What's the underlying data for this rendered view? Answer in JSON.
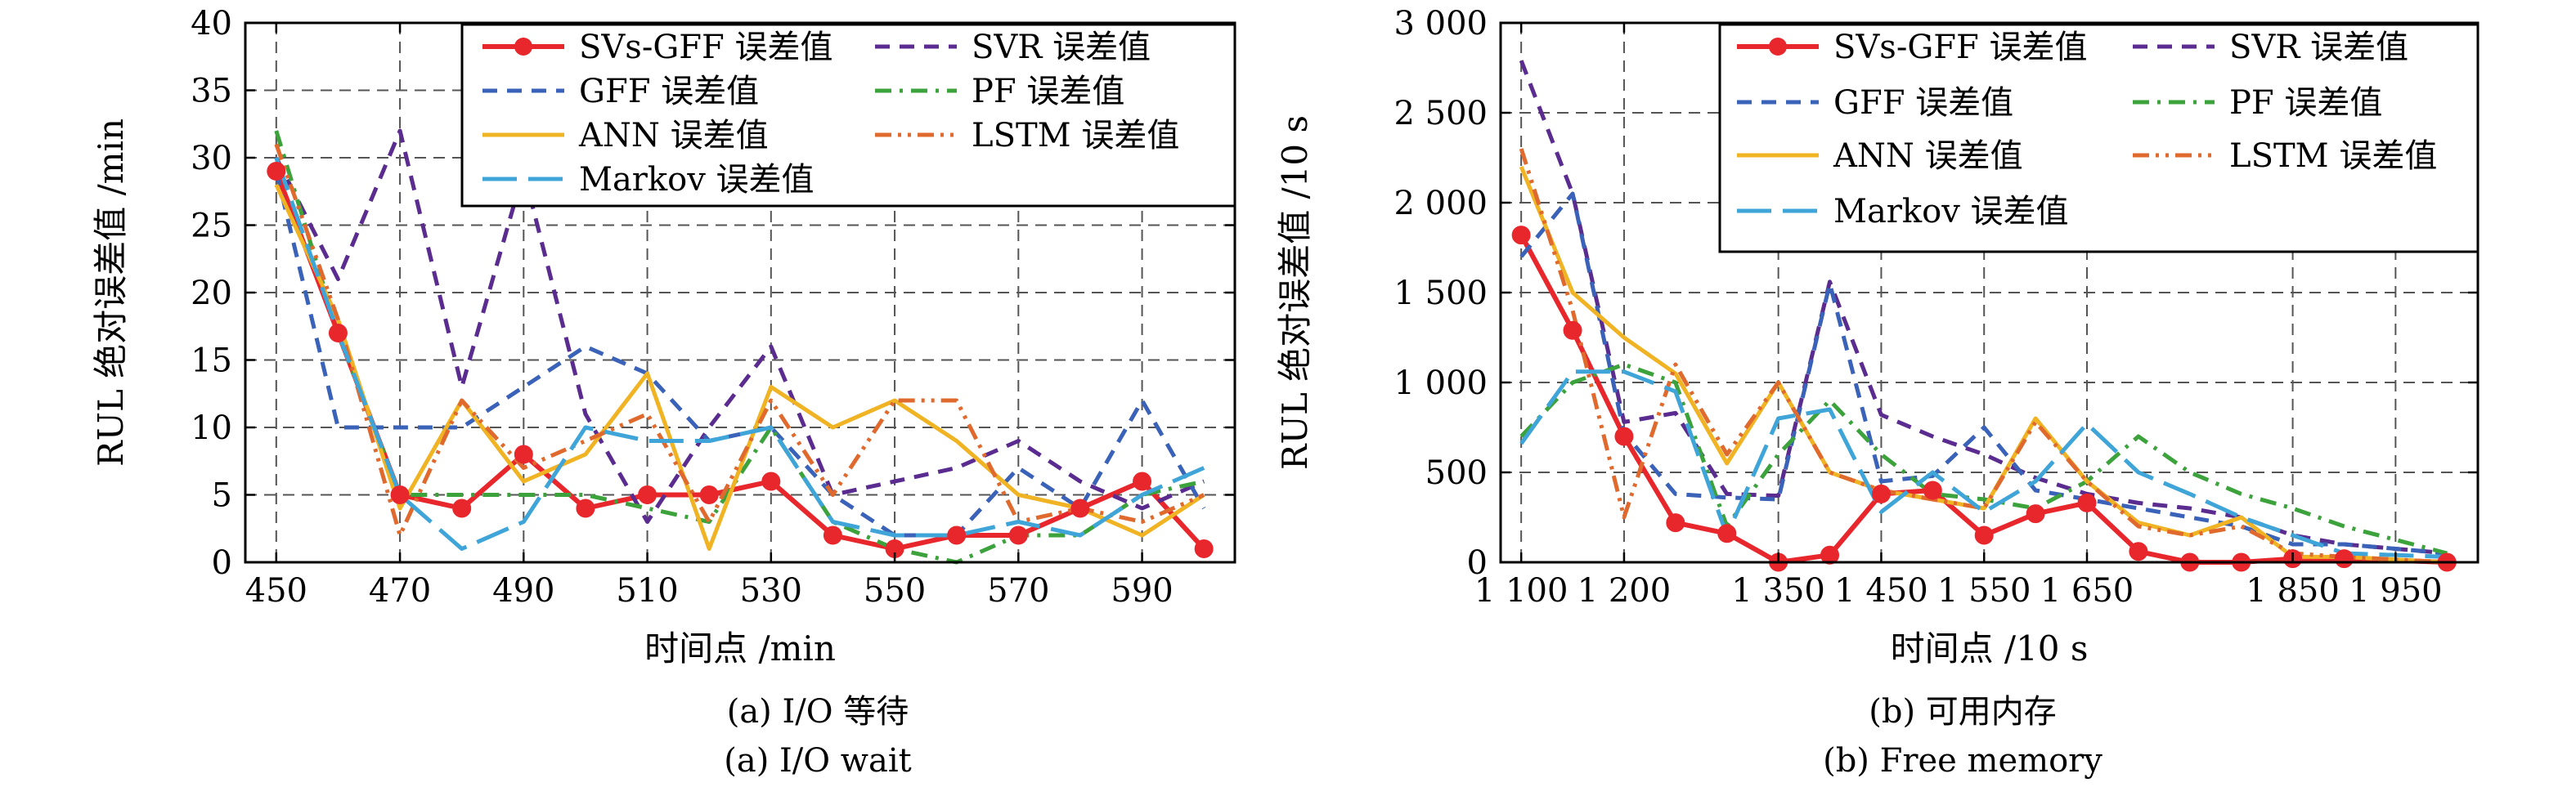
{
  "chart_data": [
    {
      "type": "line",
      "xlabel": "时间点 /min",
      "ylabel": "RUL 绝对误差值 /min",
      "caption_cn": "(a) I/O 等待",
      "caption_en": "(a) I/O wait",
      "xlim": [
        445,
        605
      ],
      "ylim": [
        0,
        40
      ],
      "xticks": [
        450,
        470,
        490,
        510,
        530,
        550,
        570,
        590
      ],
      "xtick_labels": [
        "450",
        "470",
        "490",
        "510",
        "530",
        "550",
        "570",
        "590"
      ],
      "yticks": [
        0,
        5,
        10,
        15,
        20,
        25,
        30,
        35,
        40
      ],
      "ytick_labels": [
        "0",
        "5",
        "10",
        "15",
        "20",
        "25",
        "30",
        "35",
        "40"
      ],
      "grid": true,
      "legend_position": "top-right",
      "series": [
        {
          "name": "SVs-GFF 误差值",
          "color": "#e8272d",
          "style": "marker",
          "x": [
            450,
            460,
            470,
            480,
            490,
            500,
            510,
            520,
            530,
            540,
            550,
            560,
            570,
            580,
            590,
            600
          ],
          "y": [
            29,
            17,
            5,
            4,
            8,
            4,
            5,
            5,
            6,
            2,
            1,
            2,
            2,
            4,
            6,
            1
          ]
        },
        {
          "name": "SVR 误差值",
          "color": "#5b2c8f",
          "style": "dash",
          "x": [
            450,
            460,
            470,
            480,
            490,
            500,
            510,
            520,
            530,
            540,
            550,
            560,
            570,
            580,
            590,
            600
          ],
          "y": [
            30,
            21,
            32,
            13,
            29,
            11,
            3,
            10,
            16,
            5,
            6,
            7,
            9,
            6,
            4,
            6
          ]
        },
        {
          "name": "GFF 误差值",
          "color": "#3a62b8",
          "style": "dash",
          "x": [
            450,
            460,
            470,
            480,
            490,
            500,
            510,
            520,
            530,
            540,
            550,
            560,
            570,
            580,
            590,
            600
          ],
          "y": [
            29,
            10,
            10,
            10,
            13,
            16,
            14,
            9,
            10,
            5,
            2,
            2,
            7,
            4,
            12,
            4
          ]
        },
        {
          "name": "PF 误差值",
          "color": "#3ca23c",
          "style": "dashdot",
          "x": [
            450,
            460,
            470,
            480,
            490,
            500,
            510,
            520,
            530,
            540,
            550,
            560,
            570,
            580,
            590,
            600
          ],
          "y": [
            32,
            17,
            5,
            5,
            5,
            5,
            4,
            3,
            10,
            3,
            1,
            0,
            2,
            2,
            5,
            6
          ]
        },
        {
          "name": "ANN 误差值",
          "color": "#f0b323",
          "style": "solid",
          "x": [
            450,
            460,
            470,
            480,
            490,
            500,
            510,
            520,
            530,
            540,
            550,
            560,
            570,
            580,
            590,
            600
          ],
          "y": [
            28,
            18,
            4,
            12,
            6,
            8,
            14,
            1,
            13,
            10,
            12,
            9,
            5,
            4,
            2,
            5
          ]
        },
        {
          "name": "LSTM 误差值",
          "color": "#e06a2e",
          "style": "dashdotdot",
          "x": [
            450,
            460,
            470,
            480,
            490,
            500,
            510,
            520,
            530,
            540,
            550,
            560,
            570,
            580,
            590,
            600
          ],
          "y": [
            31,
            18,
            2,
            12,
            7,
            9,
            11,
            3,
            12,
            5,
            12,
            12,
            3,
            4,
            3,
            5
          ]
        },
        {
          "name": "Markov 误差值",
          "color": "#3fa5d8",
          "style": "longdash",
          "x": [
            450,
            460,
            470,
            480,
            490,
            500,
            510,
            520,
            530,
            540,
            550,
            560,
            570,
            580,
            590,
            600
          ],
          "y": [
            30,
            17,
            5,
            1,
            3,
            10,
            9,
            9,
            10,
            3,
            2,
            2,
            3,
            2,
            5,
            7
          ]
        }
      ]
    },
    {
      "type": "line",
      "xlabel": "时间点 /10 s",
      "ylabel": "RUL 绝对误差值 /10 s",
      "caption_cn": "(b) 可用内存",
      "caption_en": "(b) Free memory",
      "xlim": [
        1080,
        2030
      ],
      "ylim": [
        0,
        3000
      ],
      "xticks": [
        1100,
        1200,
        1350,
        1450,
        1550,
        1650,
        1850,
        1950
      ],
      "xtick_labels": [
        "1 100",
        "1 200",
        "1 350",
        "1 450",
        "1 550",
        "1 650",
        "1 850",
        "1 950"
      ],
      "yticks": [
        0,
        500,
        1000,
        1500,
        2000,
        2500,
        3000
      ],
      "ytick_labels": [
        "0",
        "500",
        "1 000",
        "1 500",
        "2 000",
        "2 500",
        "3 000"
      ],
      "grid": true,
      "legend_position": "top-right",
      "series": [
        {
          "name": "SVs-GFF 误差值",
          "color": "#e8272d",
          "style": "marker",
          "x": [
            1100,
            1150,
            1200,
            1250,
            1300,
            1350,
            1400,
            1450,
            1500,
            1550,
            1600,
            1650,
            1700,
            1750,
            1800,
            1850,
            1900,
            2000
          ],
          "y": [
            1820,
            1290,
            700,
            220,
            160,
            0,
            40,
            380,
            400,
            150,
            270,
            330,
            60,
            0,
            0,
            20,
            20,
            0
          ]
        },
        {
          "name": "SVR 误差值",
          "color": "#5b2c8f",
          "style": "dash",
          "x": [
            1100,
            1150,
            1200,
            1250,
            1300,
            1350,
            1400,
            1450,
            1500,
            1550,
            1600,
            1650,
            1700,
            1750,
            1800,
            1850,
            1900,
            2000
          ],
          "y": [
            2790,
            2050,
            780,
            830,
            380,
            370,
            1560,
            820,
            700,
            600,
            470,
            380,
            330,
            300,
            250,
            150,
            100,
            50
          ]
        },
        {
          "name": "GFF 误差值",
          "color": "#3a62b8",
          "style": "dash",
          "x": [
            1100,
            1150,
            1200,
            1250,
            1300,
            1350,
            1400,
            1450,
            1500,
            1550,
            1600,
            1650,
            1700,
            1750,
            1800,
            1850,
            1900,
            2000
          ],
          "y": [
            1700,
            2050,
            720,
            380,
            360,
            350,
            1550,
            450,
            480,
            750,
            400,
            350,
            300,
            250,
            200,
            100,
            100,
            50
          ]
        },
        {
          "name": "PF 误差值",
          "color": "#3ca23c",
          "style": "dashdot",
          "x": [
            1100,
            1150,
            1200,
            1250,
            1300,
            1350,
            1400,
            1450,
            1500,
            1550,
            1600,
            1650,
            1700,
            1750,
            1800,
            1850,
            1900,
            2000
          ],
          "y": [
            700,
            1000,
            1100,
            1000,
            200,
            600,
            900,
            600,
            380,
            350,
            300,
            450,
            700,
            500,
            380,
            300,
            200,
            50
          ]
        },
        {
          "name": "ANN 误差值",
          "color": "#f0b323",
          "style": "solid",
          "x": [
            1100,
            1150,
            1200,
            1250,
            1300,
            1350,
            1400,
            1450,
            1500,
            1550,
            1600,
            1650,
            1700,
            1750,
            1800,
            1850,
            1900,
            2000
          ],
          "y": [
            2200,
            1500,
            1250,
            1050,
            550,
            1000,
            500,
            400,
            350,
            300,
            800,
            450,
            220,
            150,
            250,
            30,
            30,
            0
          ]
        },
        {
          "name": "LSTM 误差值",
          "color": "#e06a2e",
          "style": "dashdotdot",
          "x": [
            1100,
            1150,
            1200,
            1250,
            1300,
            1350,
            1400,
            1450,
            1500,
            1550,
            1600,
            1650,
            1700,
            1750,
            1800,
            1850,
            1900,
            2000
          ],
          "y": [
            2300,
            1400,
            250,
            1100,
            600,
            1000,
            500,
            400,
            350,
            300,
            780,
            450,
            200,
            150,
            200,
            50,
            30,
            0
          ]
        },
        {
          "name": "Markov 误差值",
          "color": "#3fa5d8",
          "style": "longdash",
          "x": [
            1100,
            1150,
            1200,
            1250,
            1300,
            1350,
            1400,
            1450,
            1500,
            1550,
            1600,
            1650,
            1700,
            1750,
            1800,
            1850,
            1900,
            2000
          ],
          "y": [
            660,
            1060,
            1060,
            950,
            150,
            800,
            850,
            280,
            500,
            280,
            450,
            770,
            500,
            380,
            250,
            150,
            50,
            30
          ]
        }
      ]
    }
  ]
}
